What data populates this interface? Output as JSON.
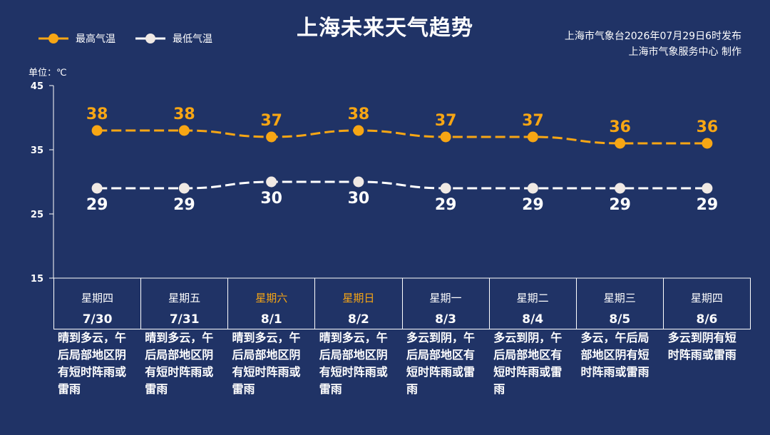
{
  "title": "上海未来天气趋势",
  "legend": {
    "high": "最高气温",
    "low": "最低气温"
  },
  "issuer": {
    "line1": "上海市气象台2026年07月29日6时发布",
    "line2": "上海市气象服务中心  制作"
  },
  "unit_label": "单位：℃",
  "colors": {
    "background": "#203366",
    "high": "#f7a614",
    "low": "#ffffff",
    "weekend": "#f7a614"
  },
  "chart_data": {
    "type": "line",
    "categories": [
      "7/30",
      "7/31",
      "8/1",
      "8/2",
      "8/3",
      "8/4",
      "8/5",
      "8/6"
    ],
    "series": [
      {
        "name": "最高气温",
        "values": [
          38,
          38,
          37,
          38,
          37,
          37,
          36,
          36
        ]
      },
      {
        "name": "最低气温",
        "values": [
          29,
          29,
          30,
          30,
          29,
          29,
          29,
          29
        ]
      }
    ],
    "ylim": [
      15,
      45
    ],
    "yticks": [
      15,
      25,
      35,
      45
    ],
    "grid": false,
    "legend_position": "top-left"
  },
  "days": [
    {
      "weekday": "星期四",
      "date": "7/30",
      "weekend": false,
      "desc": "晴到多云，午后局部地区阴有短时阵雨或雷雨"
    },
    {
      "weekday": "星期五",
      "date": "7/31",
      "weekend": false,
      "desc": "晴到多云，午后局部地区阴有短时阵雨或雷雨"
    },
    {
      "weekday": "星期六",
      "date": "8/1",
      "weekend": true,
      "desc": "晴到多云，午后局部地区阴有短时阵雨或雷雨"
    },
    {
      "weekday": "星期日",
      "date": "8/2",
      "weekend": true,
      "desc": "晴到多云，午后局部地区阴有短时阵雨或雷雨"
    },
    {
      "weekday": "星期一",
      "date": "8/3",
      "weekend": false,
      "desc": "多云到阴，午后局部地区有短时阵雨或雷雨"
    },
    {
      "weekday": "星期二",
      "date": "8/4",
      "weekend": false,
      "desc": "多云到阴，午后局部地区有短时阵雨或雷雨"
    },
    {
      "weekday": "星期三",
      "date": "8/5",
      "weekend": false,
      "desc": "多云，午后局部地区阴有短时阵雨或雷雨"
    },
    {
      "weekday": "星期四",
      "date": "8/6",
      "weekend": false,
      "desc": "多云到阴有短时阵雨或雷雨"
    }
  ]
}
